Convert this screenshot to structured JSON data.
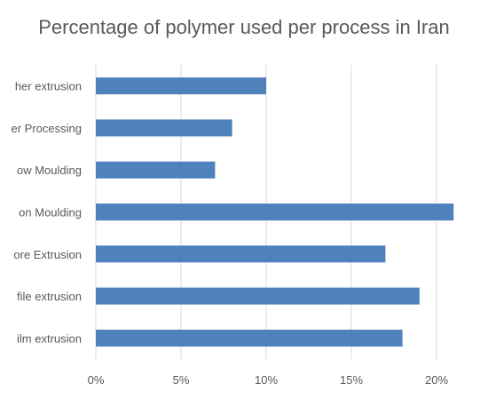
{
  "chart_data": {
    "type": "bar",
    "orientation": "horizontal",
    "title": "Percentage of polymer used per process in Iran",
    "categories": [
      "Other extrusion",
      "Other Processing",
      "Blow Moulding",
      "Injection Moulding",
      "Pipe and core Extrusion",
      "Profile extrusion",
      "Film extrusion"
    ],
    "visible_category_labels": [
      "her extrusion",
      "er Processing",
      "ow Moulding",
      "on Moulding",
      "ore Extrusion",
      "file extrusion",
      "ilm extrusion"
    ],
    "values": [
      0.1,
      0.08,
      0.07,
      0.21,
      0.17,
      0.19,
      0.18
    ],
    "xlim": [
      0,
      0.22
    ],
    "ticks": [
      0,
      0.05,
      0.1,
      0.15,
      0.2
    ],
    "tick_labels": [
      "0%",
      "5%",
      "10%",
      "15%",
      "20%"
    ],
    "grid": true,
    "bar_color": "#4F81BD",
    "grid_color": "#D9D9D9"
  }
}
